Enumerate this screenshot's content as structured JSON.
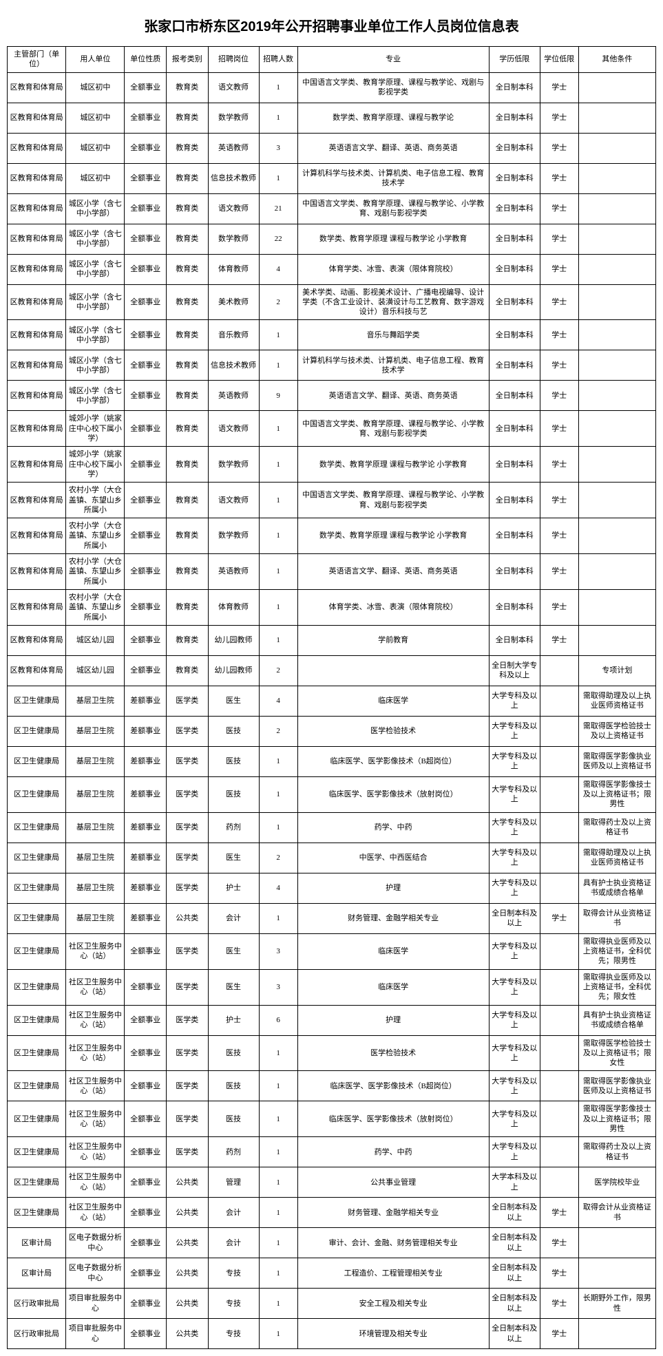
{
  "title": "张家口市桥东区2019年公开招聘事业单位工作人员岗位信息表",
  "columns": [
    "主管部门（单位）",
    "用人单位",
    "单位性质",
    "报考类别",
    "招聘岗位",
    "招聘人数",
    "专业",
    "学历低限",
    "学位低限",
    "其他条件"
  ],
  "rows": [
    [
      "区教育和体育局",
      "城区初中",
      "全额事业",
      "教育类",
      "语文教师",
      "1",
      "中国语言文学类、教育学原理、课程与教学论、戏剧与影视学类",
      "全日制本科",
      "学士",
      ""
    ],
    [
      "区教育和体育局",
      "城区初中",
      "全额事业",
      "教育类",
      "数学教师",
      "1",
      "数学类、教育学原理、课程与教学论",
      "全日制本科",
      "学士",
      ""
    ],
    [
      "区教育和体育局",
      "城区初中",
      "全额事业",
      "教育类",
      "英语教师",
      "3",
      "英语语言文学、翻译、英语、商务英语",
      "全日制本科",
      "学士",
      ""
    ],
    [
      "区教育和体育局",
      "城区初中",
      "全额事业",
      "教育类",
      "信息技术教师",
      "1",
      "计算机科学与技术类、计算机类、电子信息工程、教育技术学",
      "全日制本科",
      "学士",
      ""
    ],
    [
      "区教育和体育局",
      "城区小学（含七中小学部）",
      "全额事业",
      "教育类",
      "语文教师",
      "21",
      "中国语言文学类、教育学原理、课程与教学论、小学教育、戏剧与影视学类",
      "全日制本科",
      "学士",
      ""
    ],
    [
      "区教育和体育局",
      "城区小学（含七中小学部）",
      "全额事业",
      "教育类",
      "数学教师",
      "22",
      "数学类、教育学原理 课程与教学论 小学教育",
      "全日制本科",
      "学士",
      ""
    ],
    [
      "区教育和体育局",
      "城区小学（含七中小学部）",
      "全额事业",
      "教育类",
      "体育教师",
      "4",
      "体育学类、冰雪、表演（限体育院校）",
      "全日制本科",
      "学士",
      ""
    ],
    [
      "区教育和体育局",
      "城区小学（含七中小学部）",
      "全额事业",
      "教育类",
      "美术教师",
      "2",
      "美术学类、动画、影视美术设计、广播电视编导、设计学类（不含工业设计、装潢设计与工艺教育、数字游戏设计）音乐科技与艺",
      "全日制本科",
      "学士",
      ""
    ],
    [
      "区教育和体育局",
      "城区小学（含七中小学部）",
      "全额事业",
      "教育类",
      "音乐教师",
      "1",
      "音乐与舞蹈学类",
      "全日制本科",
      "学士",
      ""
    ],
    [
      "区教育和体育局",
      "城区小学（含七中小学部）",
      "全额事业",
      "教育类",
      "信息技术教师",
      "1",
      "计算机科学与技术类、计算机类、电子信息工程、教育技术学",
      "全日制本科",
      "学士",
      ""
    ],
    [
      "区教育和体育局",
      "城区小学（含七中小学部）",
      "全额事业",
      "教育类",
      "英语教师",
      "9",
      "英语语言文学、翻译、英语、商务英语",
      "全日制本科",
      "学士",
      ""
    ],
    [
      "区教育和体育局",
      "城郊小学（姚家庄中心校下属小学）",
      "全额事业",
      "教育类",
      "语文教师",
      "1",
      "中国语言文学类、教育学原理、课程与教学论、小学教育、戏剧与影视学类",
      "全日制本科",
      "学士",
      ""
    ],
    [
      "区教育和体育局",
      "城郊小学（姚家庄中心校下属小学）",
      "全额事业",
      "教育类",
      "数学教师",
      "1",
      "数学类、教育学原理 课程与教学论 小学教育",
      "全日制本科",
      "学士",
      ""
    ],
    [
      "区教育和体育局",
      "农村小学（大仓盖镇、东望山乡所属小",
      "全额事业",
      "教育类",
      "语文教师",
      "1",
      "中国语言文学类、教育学原理、课程与教学论、小学教育、戏剧与影视学类",
      "全日制本科",
      "学士",
      ""
    ],
    [
      "区教育和体育局",
      "农村小学（大仓盖镇、东望山乡所属小",
      "全额事业",
      "教育类",
      "数学教师",
      "1",
      "数学类、教育学原理 课程与教学论 小学教育",
      "全日制本科",
      "学士",
      ""
    ],
    [
      "区教育和体育局",
      "农村小学（大仓盖镇、东望山乡所属小",
      "全额事业",
      "教育类",
      "英语教师",
      "1",
      "英语语言文学、翻译、英语、商务英语",
      "全日制本科",
      "学士",
      ""
    ],
    [
      "区教育和体育局",
      "农村小学（大仓盖镇、东望山乡所属小",
      "全额事业",
      "教育类",
      "体育教师",
      "1",
      "体育学类、冰雪、表演（限体育院校）",
      "全日制本科",
      "学士",
      ""
    ],
    [
      "区教育和体育局",
      "城区幼儿园",
      "全额事业",
      "教育类",
      "幼儿园教师",
      "1",
      "学前教育",
      "全日制本科",
      "学士",
      ""
    ],
    [
      "区教育和体育局",
      "城区幼儿园",
      "全额事业",
      "教育类",
      "幼儿园教师",
      "2",
      "",
      "全日制大学专科及以上",
      "",
      "专项计划"
    ],
    [
      "区卫生健康局",
      "基层卫生院",
      "差额事业",
      "医学类",
      "医生",
      "4",
      "临床医学",
      "大学专科及以上",
      "",
      "需取得助理及以上执业医师资格证书"
    ],
    [
      "区卫生健康局",
      "基层卫生院",
      "差额事业",
      "医学类",
      "医技",
      "2",
      "医学检验技术",
      "大学专科及以上",
      "",
      "需取得医学检验技士及以上资格证书"
    ],
    [
      "区卫生健康局",
      "基层卫生院",
      "差额事业",
      "医学类",
      "医技",
      "1",
      "临床医学、医学影像技术（B超岗位）",
      "大学专科及以上",
      "",
      "需取得医学影像执业医师及以上资格证书"
    ],
    [
      "区卫生健康局",
      "基层卫生院",
      "差额事业",
      "医学类",
      "医技",
      "1",
      "临床医学、医学影像技术（放射岗位）",
      "大学专科及以上",
      "",
      "需取得医学影像技士及以上资格证书；限男性"
    ],
    [
      "区卫生健康局",
      "基层卫生院",
      "差额事业",
      "医学类",
      "药剂",
      "1",
      "药学、中药",
      "大学专科及以上",
      "",
      "需取得药士及以上资格证书"
    ],
    [
      "区卫生健康局",
      "基层卫生院",
      "差额事业",
      "医学类",
      "医生",
      "2",
      "中医学、中西医结合",
      "大学专科及以上",
      "",
      "需取得助理及以上执业医师资格证书"
    ],
    [
      "区卫生健康局",
      "基层卫生院",
      "差额事业",
      "医学类",
      "护士",
      "4",
      "护理",
      "大学专科及以上",
      "",
      "具有护士执业资格证书或成绩合格单"
    ],
    [
      "区卫生健康局",
      "基层卫生院",
      "差额事业",
      "公共类",
      "会计",
      "1",
      "财务管理、金融学相关专业",
      "全日制本科及以上",
      "学士",
      "取得会计从业资格证书"
    ],
    [
      "区卫生健康局",
      "社区卫生服务中心（站）",
      "全额事业",
      "医学类",
      "医生",
      "3",
      "临床医学",
      "大学专科及以上",
      "",
      "需取得执业医师及以上资格证书，全科优先；限男性"
    ],
    [
      "区卫生健康局",
      "社区卫生服务中心（站）",
      "全额事业",
      "医学类",
      "医生",
      "3",
      "临床医学",
      "大学专科及以上",
      "",
      "需取得执业医师及以上资格证书，全科优先；限女性"
    ],
    [
      "区卫生健康局",
      "社区卫生服务中心（站）",
      "全额事业",
      "医学类",
      "护士",
      "6",
      "护理",
      "大学专科及以上",
      "",
      "具有护士执业资格证书或成绩合格单"
    ],
    [
      "区卫生健康局",
      "社区卫生服务中心（站）",
      "全额事业",
      "医学类",
      "医技",
      "1",
      "医学检验技术",
      "大学专科及以上",
      "",
      "需取得医学检验技士及以上资格证书；限女性"
    ],
    [
      "区卫生健康局",
      "社区卫生服务中心（站）",
      "全额事业",
      "医学类",
      "医技",
      "1",
      "临床医学、医学影像技术（B超岗位）",
      "大学专科及以上",
      "",
      "需取得医学影像执业医师及以上资格证书"
    ],
    [
      "区卫生健康局",
      "社区卫生服务中心（站）",
      "全额事业",
      "医学类",
      "医技",
      "1",
      "临床医学、医学影像技术（放射岗位）",
      "大学专科及以上",
      "",
      "需取得医学影像技士及以上资格证书；限男性"
    ],
    [
      "区卫生健康局",
      "社区卫生服务中心（站）",
      "全额事业",
      "医学类",
      "药剂",
      "1",
      "药学、中药",
      "大学专科及以上",
      "",
      "需取得药士及以上资格证书"
    ],
    [
      "区卫生健康局",
      "社区卫生服务中心（站）",
      "全额事业",
      "公共类",
      "管理",
      "1",
      "公共事业管理",
      "大学本科及以上",
      "",
      "医学院校毕业"
    ],
    [
      "区卫生健康局",
      "社区卫生服务中心（站）",
      "全额事业",
      "公共类",
      "会计",
      "1",
      "财务管理、金融学相关专业",
      "全日制本科及以上",
      "学士",
      "取得会计从业资格证书"
    ],
    [
      "区审计局",
      "区电子数据分析中心",
      "全额事业",
      "公共类",
      "会计",
      "1",
      "审计、会计、金融、财务管理相关专业",
      "全日制本科及以上",
      "学士",
      ""
    ],
    [
      "区审计局",
      "区电子数据分析中心",
      "全额事业",
      "公共类",
      "专技",
      "1",
      "工程造价、工程管理相关专业",
      "全日制本科及以上",
      "学士",
      ""
    ],
    [
      "区行政审批局",
      "项目审批服务中心",
      "全额事业",
      "公共类",
      "专技",
      "1",
      "安全工程及相关专业",
      "全日制本科及以上",
      "学士",
      "长期野外工作，限男性"
    ],
    [
      "区行政审批局",
      "项目审批服务中心",
      "全额事业",
      "公共类",
      "专技",
      "1",
      "环境管理及相关专业",
      "全日制本科及以上",
      "学士",
      ""
    ]
  ],
  "styling": {
    "background_color": "#ffffff",
    "border_color": "#000000",
    "title_fontsize": 20,
    "cell_fontsize": 11
  }
}
